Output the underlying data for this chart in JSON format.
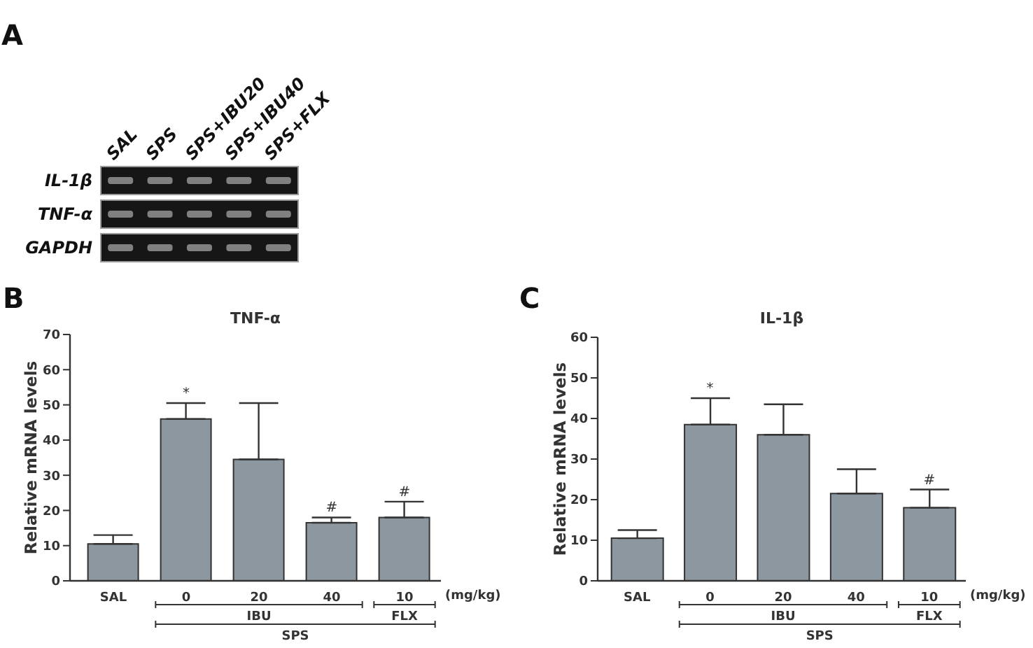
{
  "chart_data": [
    {
      "type": "other",
      "categories": [
        "SAL",
        "SPS",
        "SPS+IBU20",
        "SPS+IBU40",
        "SPS+FLX"
      ],
      "y_categories": [
        "IL-1β",
        "TNF-α",
        "GAPDH"
      ],
      "annotations": [
        "A"
      ]
    },
    {
      "type": "bar",
      "title": "TNF-α",
      "ylabel": "Relative mRNA levels",
      "xlabel": "(mg/kg)",
      "categories": [
        "SAL",
        "0",
        "20",
        "40",
        "10"
      ],
      "values": [
        10.5,
        46,
        34.5,
        16.5,
        18
      ],
      "errors": [
        2.5,
        4.5,
        16,
        1.5,
        4.5
      ],
      "color": "#8d979f",
      "ylim": [
        0,
        70
      ],
      "yticks": [
        0,
        10,
        20,
        30,
        40,
        50,
        60,
        70
      ],
      "annotations": [
        "B",
        "IBU",
        "FLX",
        "SPS",
        {
          "text": "*",
          "x": "0",
          "y": 50.5
        },
        {
          "text": "#",
          "x": "40",
          "y": 18
        },
        {
          "text": "#",
          "x": "10",
          "y": 22.5
        }
      ]
    },
    {
      "type": "bar",
      "title": "IL-1β",
      "ylabel": "Relative mRNA levels",
      "xlabel": "(mg/kg)",
      "categories": [
        "SAL",
        "0",
        "20",
        "40",
        "10"
      ],
      "values": [
        10.5,
        38.5,
        36,
        21.5,
        18
      ],
      "errors": [
        2,
        6.5,
        7.5,
        6,
        4.5
      ],
      "color": "#8d979f",
      "ylim": [
        0,
        60
      ],
      "yticks": [
        0,
        10,
        20,
        30,
        40,
        50,
        60
      ],
      "annotations": [
        "C",
        "IBU",
        "FLX",
        "SPS",
        {
          "text": "*",
          "x": "0",
          "y": 45
        },
        {
          "text": "#",
          "x": "10",
          "y": 22.5
        }
      ]
    }
  ]
}
